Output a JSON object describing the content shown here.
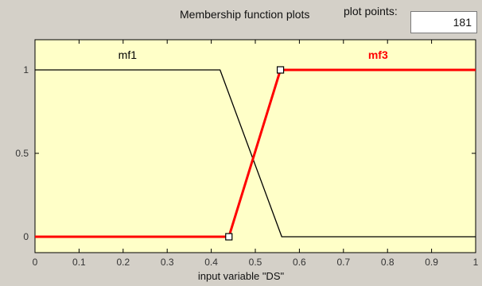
{
  "header": {
    "title": "Membership function plots",
    "plot_points_label": "plot points:",
    "plot_points_value": "181"
  },
  "colors": {
    "plot_background": "#ffffc8",
    "window_background": "#d4d0c8",
    "selected_mf": "#ff0000",
    "unselected_mf": "#000000"
  },
  "chart_data": {
    "type": "line",
    "xlabel": "input variable \"DS\"",
    "xlim": [
      0,
      1
    ],
    "ylim": [
      0,
      1
    ],
    "xticks": [
      "0",
      "0.1",
      "0.2",
      "0.3",
      "0.4",
      "0.5",
      "0.6",
      "0.7",
      "0.8",
      "0.9",
      "1"
    ],
    "yticks": [
      "0",
      "0.5",
      "1"
    ],
    "series": [
      {
        "name": "mf1",
        "color": "#000000",
        "selected": false,
        "x": [
          0,
          0.42,
          0.56,
          1
        ],
        "y": [
          1,
          1,
          0,
          0
        ]
      },
      {
        "name": "mf3",
        "color": "#ff0000",
        "selected": true,
        "x": [
          0,
          0.44,
          0.557,
          1
        ],
        "y": [
          0,
          0,
          1,
          1
        ],
        "handles": [
          {
            "x": 0.44,
            "y": 0
          },
          {
            "x": 0.557,
            "y": 1
          }
        ]
      }
    ]
  }
}
